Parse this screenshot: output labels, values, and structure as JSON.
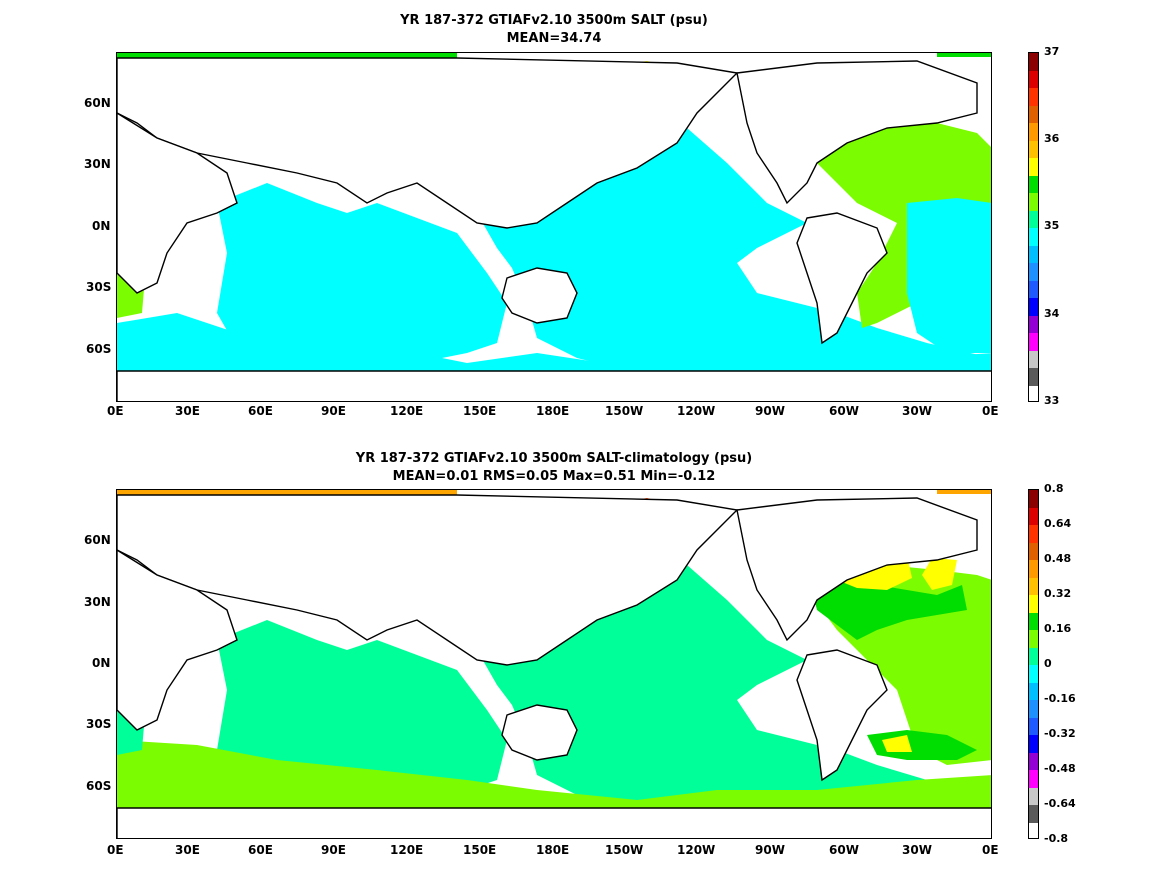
{
  "panels": [
    {
      "id": "top",
      "title_line1": "YR 187-372 GTIAFv2.10 3500m SALT (psu)",
      "title_line2": "MEAN=34.74",
      "colorbar": {
        "colors": [
          "#ffffff",
          "#5a5a5a",
          "#c8c8c8",
          "#ff00ff",
          "#9400d3",
          "#0000ff",
          "#1e5aff",
          "#1e90ff",
          "#00bfff",
          "#00ffff",
          "#00ff99",
          "#7cfc00",
          "#00dd00",
          "#ffff00",
          "#ffc000",
          "#ff9900",
          "#e06000",
          "#ff3300",
          "#dd0000",
          "#8b0000"
        ],
        "labels": [
          "37",
          "36",
          "35",
          "34",
          "33"
        ]
      }
    },
    {
      "id": "bottom",
      "title_line1": "YR 187-372 GTIAFv2.10 3500m SALT-climatology (psu)",
      "title_line2": "MEAN=0.01   RMS=0.05   Max=0.51   Min=-0.12",
      "colorbar": {
        "labels": [
          "0.8",
          "0.64",
          "0.48",
          "0.32",
          "0.16",
          "0",
          "-0.16",
          "-0.32",
          "-0.48",
          "-0.64",
          "-0.8"
        ]
      }
    }
  ],
  "axes": {
    "lon_labels": [
      "0E",
      "30E",
      "60E",
      "90E",
      "120E",
      "150E",
      "180E",
      "150W",
      "120W",
      "90W",
      "60W",
      "30W",
      "0E"
    ],
    "lat_labels": [
      "60N",
      "30N",
      "0N",
      "30S",
      "60S"
    ]
  },
  "palette": {
    "salt_34_8": "#00ffff",
    "salt_35": "#00ff99",
    "salt_35_2": "#7cfc00",
    "anom_0": "#00ff99",
    "anom_pos": "#7cfc00",
    "anom_016": "#00dd00",
    "anom_032": "#ffff00",
    "land": "#ffffff",
    "coast": "#000000"
  }
}
